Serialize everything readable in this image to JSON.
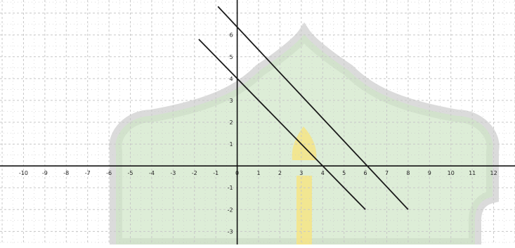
{
  "chart_data": {
    "type": "line",
    "title": "",
    "xlabel": "",
    "ylabel": "",
    "xlim": [
      -11.1,
      13.0
    ],
    "ylim": [
      -3.6,
      7.6
    ],
    "x_ticks": [
      -10,
      -9,
      -8,
      -7,
      -6,
      -5,
      -4,
      -3,
      -2,
      -1,
      0,
      1,
      2,
      3,
      4,
      5,
      6,
      7,
      8,
      9,
      10,
      11,
      12
    ],
    "y_ticks": [
      -3,
      -2,
      -1,
      1,
      2,
      3,
      4,
      5,
      6
    ],
    "grid": true,
    "legend": "none",
    "series": [
      {
        "x": [
          -1.8,
          6
        ],
        "y": [
          5.8,
          -2
        ]
      },
      {
        "x": [
          -0.9,
          8
        ],
        "y": [
          7.3,
          -2
        ]
      }
    ],
    "colors": {
      "line": "#1a1a1a",
      "axis": "#111111",
      "grid": "#c8c8c8",
      "tick_text": "#222222",
      "watermark_fill": "#cfe6c6",
      "watermark_outline": "#bdbdbd",
      "watermark_flame": "#f4e48a"
    }
  }
}
